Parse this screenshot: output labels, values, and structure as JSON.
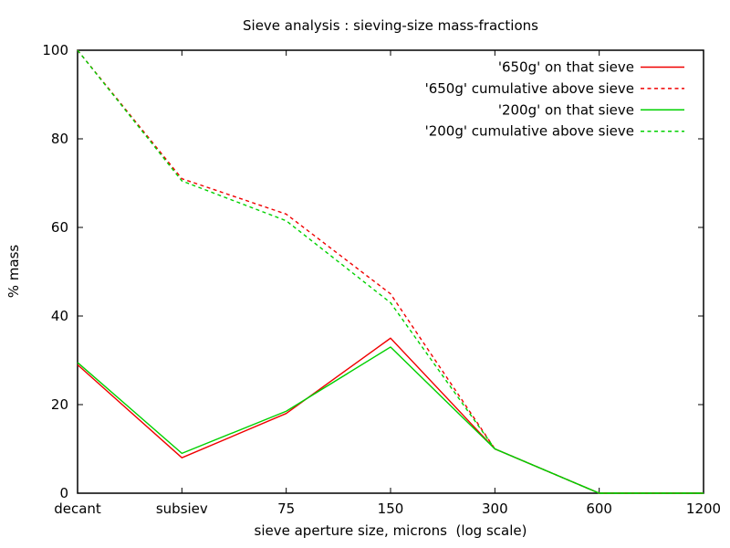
{
  "chart_data": {
    "type": "line",
    "title": "Sieve analysis : sieving-size mass-fractions",
    "xlabel": "sieve aperture size, microns  (log scale)",
    "ylabel": "% mass",
    "categories": [
      "decant",
      "subsiev",
      "75",
      "150",
      "300",
      "600",
      "1200"
    ],
    "yticks": [
      0,
      20,
      40,
      60,
      80,
      100
    ],
    "ylim": [
      0,
      100
    ],
    "grid": false,
    "legend_position": "top-right-inside",
    "axis_color": "#000000",
    "background_color": "#ffffff",
    "series": [
      {
        "name": "'650g' on that sieve",
        "color": "#f00000",
        "dash": "solid",
        "values": [
          29,
          8,
          18,
          35,
          10,
          0,
          0
        ]
      },
      {
        "name": "'650g' cumulative above sieve",
        "color": "#f00000",
        "dash": "dashed",
        "values": [
          100,
          71,
          63,
          45,
          10,
          0,
          0
        ]
      },
      {
        "name": "'200g' on that sieve",
        "color": "#00d000",
        "dash": "solid",
        "values": [
          29.5,
          9,
          18.5,
          33,
          10,
          0,
          0
        ]
      },
      {
        "name": "'200g' cumulative above sieve",
        "color": "#00d000",
        "dash": "dashed",
        "values": [
          100,
          70.5,
          61.5,
          43,
          10,
          0,
          0
        ]
      }
    ]
  }
}
